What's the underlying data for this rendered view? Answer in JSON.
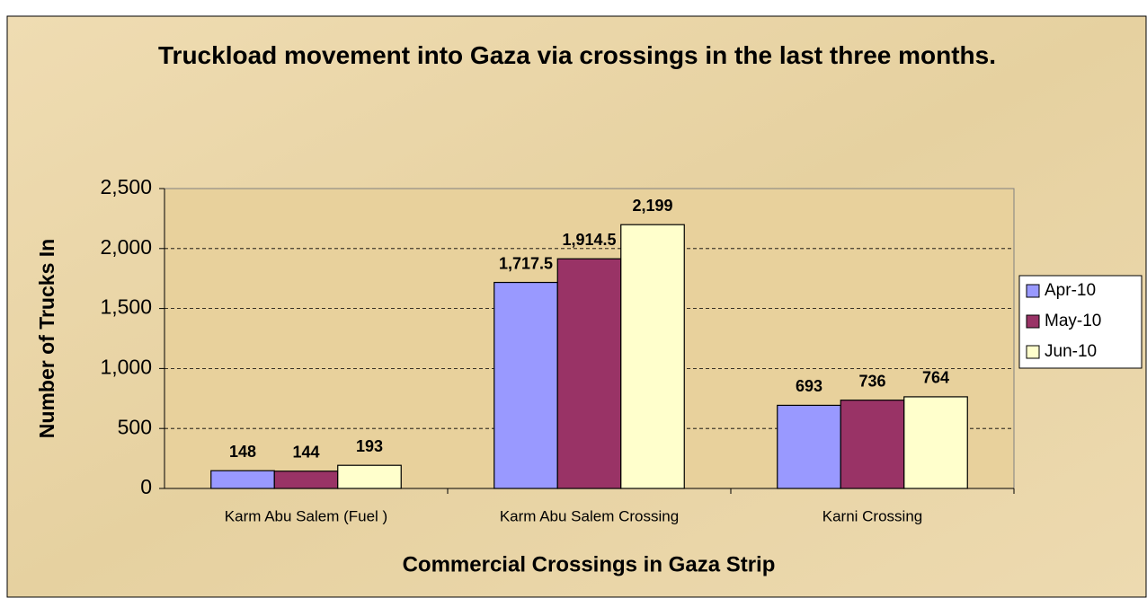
{
  "chart_data": {
    "type": "bar",
    "title": "Truckload movement into Gaza via crossings in the last three months.",
    "x_label": "Commercial Crossings in Gaza Strip",
    "y_label": "Number of Trucks In",
    "categories": [
      "Karm Abu Salem (Fuel )",
      "Karm Abu Salem  Crossing",
      "Karni Crossing"
    ],
    "series": [
      {
        "name": "Apr-10",
        "color": "#9999ff",
        "values": [
          148,
          1717.5,
          693
        ],
        "value_labels": [
          "148",
          "1,717.5",
          "693"
        ]
      },
      {
        "name": "May-10",
        "color": "#993366",
        "values": [
          144,
          1914.5,
          736
        ],
        "value_labels": [
          "144",
          "1,914.5",
          "736"
        ]
      },
      {
        "name": "Jun-10",
        "color": "#ffffcc",
        "values": [
          193,
          2199,
          764
        ],
        "value_labels": [
          "193",
          "2,199",
          "764"
        ]
      }
    ],
    "ylim": [
      0,
      2500
    ],
    "yticks": [
      0,
      500,
      {
        "value": 1000,
        "label": "1,000"
      },
      {
        "value": 1500,
        "label": "1,500"
      },
      {
        "value": 2000,
        "label": "2,000"
      },
      {
        "value": 2500,
        "label": "2,500"
      }
    ],
    "grid": true,
    "legend": "right"
  }
}
